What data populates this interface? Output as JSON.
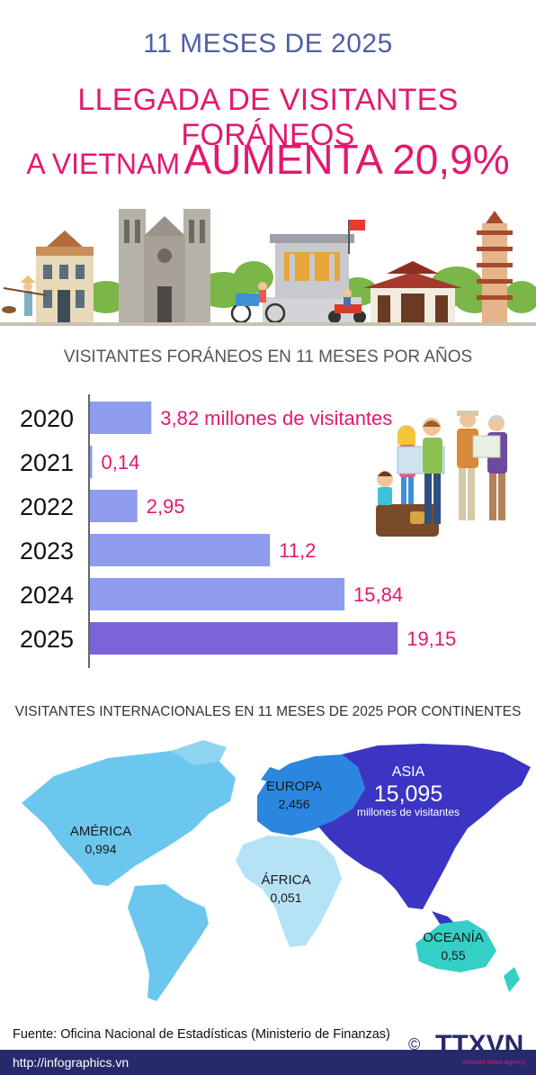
{
  "header": {
    "subtitle": "11 MESES DE 2025",
    "title_line1": "LLEGADA DE VISITANTES FORÁNEOS",
    "title_line2_a": "A VIETNAM",
    "title_line2_b": "AUMENTA 20,9%"
  },
  "chart_data": {
    "type": "bar",
    "orientation": "horizontal",
    "title": "VISITANTES FORÁNEOS EN 11 MESES POR AÑOS",
    "categories": [
      "2020",
      "2021",
      "2022",
      "2023",
      "2024",
      "2025"
    ],
    "values": [
      3.82,
      0.14,
      2.95,
      11.2,
      15.84,
      19.15
    ],
    "value_labels": [
      "3,82 millones de visitantes",
      "0,14",
      "2,95",
      "11,2",
      "15,84",
      "19,15"
    ],
    "colors": [
      "#8d9cec",
      "#8d9cec",
      "#8d9cec",
      "#8d9cec",
      "#8d9cec",
      "#7a64d8"
    ],
    "label_color": "#e2196f"
  },
  "map": {
    "title": "VISITANTES INTERNACIONALES EN 11 MESES DE 2025 POR CONTINENTES",
    "continents": [
      {
        "name": "AMÉRICA",
        "value": "0,994",
        "color": "#6cc7ee"
      },
      {
        "name": "EUROPA",
        "value": "2,456",
        "color": "#2a86de"
      },
      {
        "name": "ASIA",
        "value": "15,095",
        "unit": "millones de visitantes",
        "color": "#3c35c4"
      },
      {
        "name": "ÁFRICA",
        "value": "0,051",
        "color": "#b6e2f5"
      },
      {
        "name": "OCEANÍA",
        "value": "0,55",
        "color": "#34cfc6"
      }
    ]
  },
  "footer": {
    "source": "Fuente: Oficina Nacional de Estadísticas (Ministerio de Finanzas)",
    "website": "http://infographics.vn",
    "logo": "TTXVN",
    "logo_sub": "Vietnam News Agency",
    "copyright": "©"
  }
}
